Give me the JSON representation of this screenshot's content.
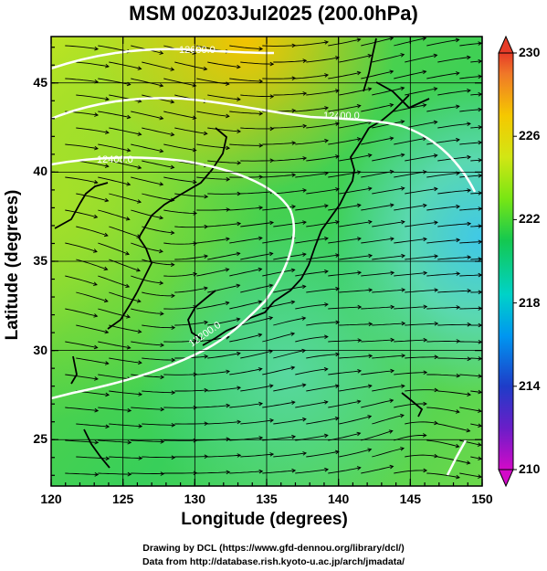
{
  "title": "MSM 00Z03Jul2025 (200.0hPa)",
  "xaxis": {
    "label": "Longitude (degrees)",
    "ticks": [
      "120",
      "125",
      "130",
      "135",
      "140",
      "145",
      "150"
    ],
    "range": [
      120,
      150
    ]
  },
  "yaxis": {
    "label": "Latitude  (degrees)",
    "ticks": [
      "25",
      "30",
      "35",
      "40",
      "45"
    ],
    "range": [
      22.4,
      47.6
    ]
  },
  "colorbar": {
    "ticks": [
      "230",
      "226",
      "222",
      "218",
      "214",
      "210"
    ],
    "range": [
      210,
      230
    ],
    "colors": [
      "#d20ac8",
      "#1e1ec8",
      "#00a0f0",
      "#00d2c8",
      "#14c850",
      "#78e614",
      "#d2e614",
      "#f5c800",
      "#f07828",
      "#e63c28"
    ]
  },
  "contours": [
    {
      "label": "12600.0"
    },
    {
      "label": "12400.0"
    },
    {
      "label": "12400.0"
    },
    {
      "label": "12200.0"
    }
  ],
  "credits": {
    "line1": "Drawing by DCL (https://www.gfd-dennou.org/library/dcl/)",
    "line2": "Data from http://database.rish.kyoto-u.ac.jp/arch/jmadata/"
  }
}
